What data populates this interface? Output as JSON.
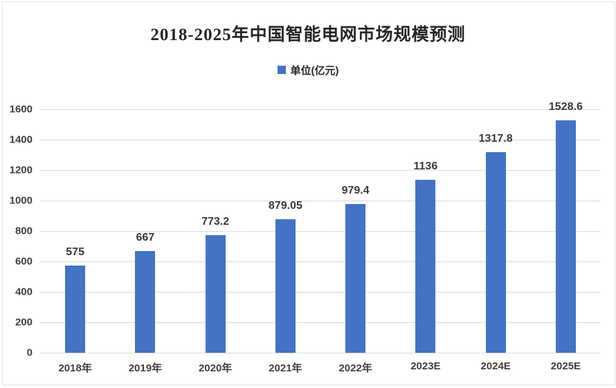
{
  "chart_data": {
    "type": "bar",
    "title": "2018-2025年中国智能电网市场规模预测",
    "legend": {
      "label": "单位(亿元)",
      "marker_color": "#4472c4",
      "position": "top"
    },
    "categories": [
      "2018年",
      "2019年",
      "2020年",
      "2021年",
      "2022年",
      "2023E",
      "2024E",
      "2025E"
    ],
    "values": [
      575,
      667,
      773.2,
      879.05,
      979.4,
      1136,
      1317.8,
      1528.6
    ],
    "value_labels": [
      "575",
      "667",
      "773.2",
      "879.05",
      "979.4",
      "1136",
      "1317.8",
      "1528.6"
    ],
    "xlabel": "",
    "ylabel": "",
    "ylim": [
      0,
      1600
    ],
    "yticks": [
      0,
      200,
      400,
      600,
      800,
      1000,
      1200,
      1400,
      1600
    ],
    "grid": true,
    "bar_color": "#4472c4",
    "gridline_color": "#d9d9d9",
    "axis_label_color": "#404040",
    "value_label_color": "#3a3a3a",
    "title_color": "#262626"
  }
}
